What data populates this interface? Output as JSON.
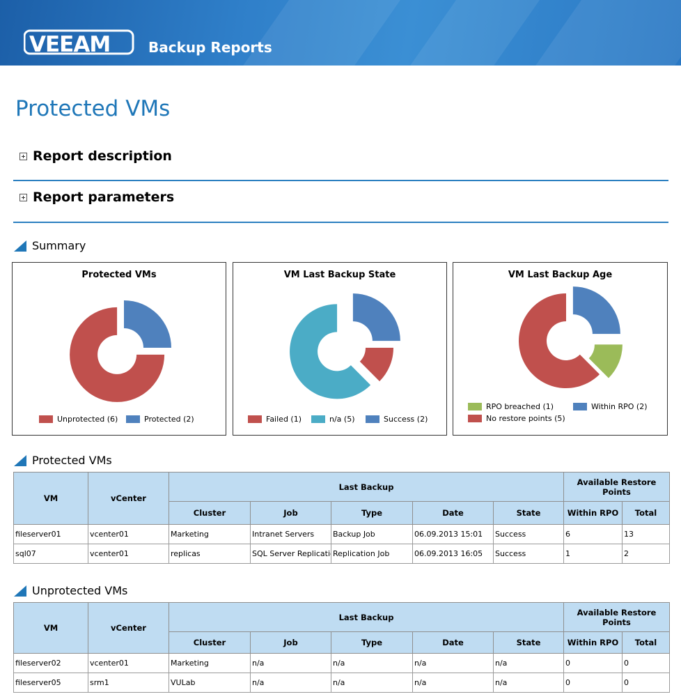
{
  "header": {
    "logo_text": "VEEAM",
    "title": "Backup Reports"
  },
  "page_title": "Protected VMs",
  "sections": {
    "description": "Report description",
    "parameters": "Report parameters"
  },
  "summary": {
    "label": "Summary"
  },
  "colors": {
    "red": "#c0504d",
    "blue": "#4f81bd",
    "teal": "#4bacc6",
    "green": "#9bbb59",
    "accent": "#1f77b8",
    "header_fill": "#bfdcf2"
  },
  "chart_data": [
    {
      "type": "pie",
      "title": "Protected VMs",
      "labels": [
        "Unprotected",
        "Protected"
      ],
      "values": [
        6,
        2
      ],
      "legend": [
        "Unprotected (6)",
        "Protected (2)"
      ]
    },
    {
      "type": "pie",
      "title": "VM Last Backup State",
      "labels": [
        "Failed",
        "n/a",
        "Success"
      ],
      "values": [
        1,
        5,
        2
      ],
      "legend": [
        "Failed (1)",
        "n/a (5)",
        "Success (2)"
      ]
    },
    {
      "type": "pie",
      "title": "VM Last Backup Age",
      "labels": [
        "RPO breached",
        "Within RPO",
        "No restore points"
      ],
      "values": [
        1,
        2,
        5
      ],
      "legend": [
        "RPO breached (1)",
        "Within RPO (2)",
        "No restore points (5)"
      ]
    }
  ],
  "tables": {
    "headers": {
      "vm": "VM",
      "vcenter": "vCenter",
      "last_backup": "Last Backup",
      "restore_points": "Available Restore Points",
      "cluster": "Cluster",
      "job": "Job",
      "type": "Type",
      "date": "Date",
      "state": "State",
      "within_rpo": "Within RPO",
      "total": "Total"
    },
    "protected": {
      "label": "Protected VMs",
      "rows": [
        [
          "fileserver01",
          "vcenter01",
          "Marketing",
          "Intranet Servers",
          "Backup Job",
          "06.09.2013 15:01",
          "Success",
          "6",
          "13"
        ],
        [
          "sql07",
          "vcenter01",
          "replicas",
          "SQL Server Replication",
          "Replication Job",
          "06.09.2013 16:05",
          "Success",
          "1",
          "2"
        ]
      ]
    },
    "unprotected": {
      "label": "Unprotected VMs",
      "rows": [
        [
          "fileserver02",
          "vcenter01",
          "Marketing",
          "n/a",
          "n/a",
          "n/a",
          "n/a",
          "0",
          "0"
        ],
        [
          "fileserver05",
          "srm1",
          "VULab",
          "n/a",
          "n/a",
          "n/a",
          "n/a",
          "0",
          "0"
        ]
      ]
    }
  }
}
